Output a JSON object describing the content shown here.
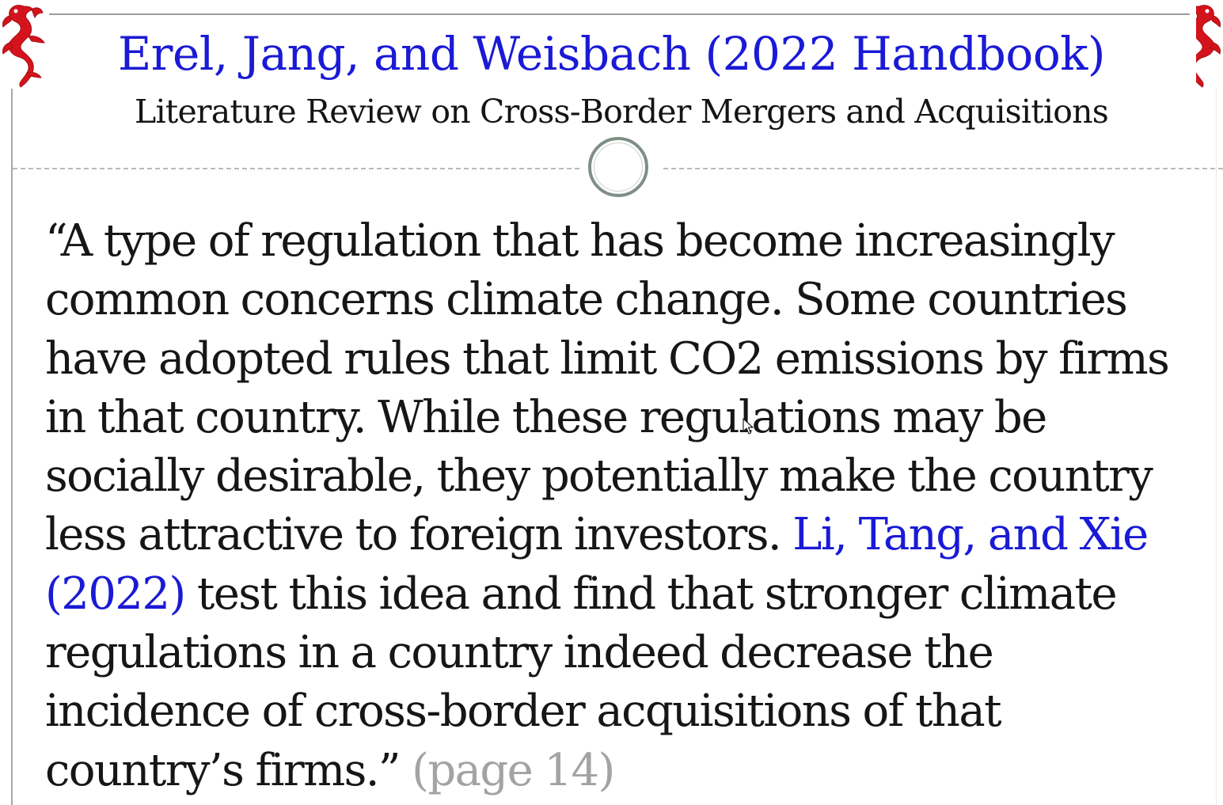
{
  "slide": {
    "title": "Erel, Jang, and Weisbach (2022 Handbook)",
    "subtitle": "Literature Review on Cross-Border Mergers and Acquisitions",
    "colors": {
      "title": "#1a1ad6",
      "body_text": "#161616",
      "citation": "#1a1ad6",
      "page_reference": "#a3a3a3",
      "dragon": "#d4141c"
    },
    "decorations": {
      "left_ornament_icon": "red-dragon-icon",
      "right_ornament_icon": "red-dragon-icon",
      "divider_ornament": "circle-ornament-icon",
      "pointer": "mouse-cursor-icon"
    }
  },
  "quote": {
    "line1": "“A type of regulation that has become increasingly",
    "line2": "common concerns climate change. Some countries",
    "line3": "have adopted rules that limit CO2 emissions by firms",
    "line4": "in that country. While these regulations may be",
    "line5": "socially desirable, they potentially make the country",
    "line6_text": "less attractive to foreign investors. ",
    "citation_part1": "Li, Tang, and Xie",
    "citation_part2": "(2022)",
    "line7_text": " test this idea and find that stronger climate",
    "line8": "regulations in a country indeed decrease the",
    "line9": "incidence of cross-border acquisitions of that",
    "line10_text": "country’s firms.” ",
    "page_reference": "(page 14)"
  }
}
